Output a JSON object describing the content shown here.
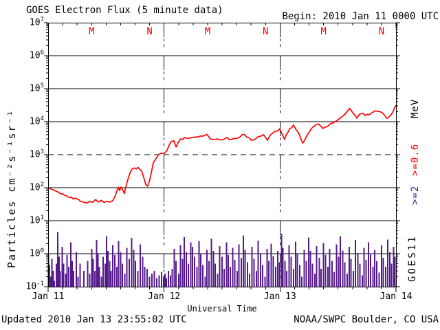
{
  "header": {
    "title": "GOES Electron Flux (5 minute data)",
    "begin": "Begin: 2010 Jan 11 0000 UTC"
  },
  "footer": {
    "updated": "Updated 2010 Jan 13 23:55:02 UTC",
    "credit": "NOAA/SWPC Boulder, CO USA"
  },
  "chart_data": {
    "type": "line+bar",
    "title": "GOES Electron Flux (5 minute data)",
    "xlabel": "Universal Time",
    "ylabel": "Particles cm⁻²s⁻¹sr⁻¹",
    "satellite": "GOES11",
    "x_ticks": [
      {
        "label": "Jan 11",
        "day": 0
      },
      {
        "label": "Jan 12",
        "day": 1
      },
      {
        "label": "Jan 13",
        "day": 2
      },
      {
        "label": "Jan 14",
        "day": 3
      }
    ],
    "y_ticks": [
      {
        "label": "10^7",
        "exp": 7
      },
      {
        "label": "10^6",
        "exp": 6
      },
      {
        "label": "10^5",
        "exp": 5
      },
      {
        "label": "10^4",
        "exp": 4
      },
      {
        "label": "10^3",
        "exp": 3
      },
      {
        "label": "10^2",
        "exp": 2
      },
      {
        "label": "10^1",
        "exp": 1
      },
      {
        "label": "10^0",
        "exp": 0
      },
      {
        "label": "10^-1",
        "exp": -1
      }
    ],
    "ylim_exp": [
      -1,
      7
    ],
    "x_range_hours": [
      0,
      72
    ],
    "grid": {
      "solid_exponents": [
        6,
        5,
        4,
        2,
        1,
        0
      ],
      "dashed_exponents": [
        3
      ],
      "day_dotted_lines_hours": [
        24,
        48
      ],
      "minor_xtick_hours": 3
    },
    "local_time_markers": {
      "color": "#FF0000",
      "items": [
        {
          "label": "M",
          "hour": 9
        },
        {
          "label": "N",
          "hour": 21
        },
        {
          "label": "M",
          "hour": 33
        },
        {
          "label": "N",
          "hour": 45
        },
        {
          "label": "M",
          "hour": 57
        },
        {
          "label": "N",
          "hour": 69
        }
      ]
    },
    "right_axis_labels": {
      "units": "MeV",
      "series1": ">=0.6",
      "series2": ">=2",
      "satellite": "GOES11"
    },
    "series": [
      {
        "name": "electron flux >=0.6 MeV",
        "color": "#FF0000",
        "render": "line",
        "points_t_hours_flux": [
          [
            0,
            95
          ],
          [
            0.7,
            88
          ],
          [
            1.5,
            80
          ],
          [
            2.2,
            72
          ],
          [
            3,
            65
          ],
          [
            3.7,
            58
          ],
          [
            4.5,
            52
          ],
          [
            5.2,
            47
          ],
          [
            6,
            44
          ],
          [
            6.7,
            40
          ],
          [
            7.4,
            38
          ],
          [
            8,
            36
          ],
          [
            8.6,
            40
          ],
          [
            9.2,
            37
          ],
          [
            9.8,
            42
          ],
          [
            10.4,
            36
          ],
          [
            11,
            39
          ],
          [
            11.6,
            35
          ],
          [
            12.2,
            38
          ],
          [
            12.8,
            36
          ],
          [
            13.4,
            42
          ],
          [
            13.8,
            55
          ],
          [
            14.2,
            75
          ],
          [
            14.5,
            100
          ],
          [
            14.8,
            80
          ],
          [
            15.1,
            110
          ],
          [
            15.4,
            85
          ],
          [
            15.8,
            65
          ],
          [
            16.2,
            120
          ],
          [
            16.6,
            185
          ],
          [
            17,
            280
          ],
          [
            17.4,
            360
          ],
          [
            17.8,
            420
          ],
          [
            18.2,
            390
          ],
          [
            18.6,
            430
          ],
          [
            19,
            370
          ],
          [
            19.4,
            330
          ],
          [
            19.8,
            210
          ],
          [
            20.2,
            130
          ],
          [
            20.6,
            115
          ],
          [
            21,
            160
          ],
          [
            21.4,
            330
          ],
          [
            21.8,
            560
          ],
          [
            22.2,
            750
          ],
          [
            22.8,
            1000
          ],
          [
            23.4,
            1100
          ],
          [
            24,
            1150
          ],
          [
            24.6,
            1400
          ],
          [
            25.4,
            2300
          ],
          [
            26,
            2600
          ],
          [
            26.5,
            1800
          ],
          [
            27.4,
            2900
          ],
          [
            28.6,
            3300
          ],
          [
            30,
            3400
          ],
          [
            31.5,
            3500
          ],
          [
            32.8,
            4100
          ],
          [
            33.6,
            3100
          ],
          [
            34.6,
            2900
          ],
          [
            36,
            3000
          ],
          [
            37,
            3200
          ],
          [
            38,
            2900
          ],
          [
            39.4,
            3400
          ],
          [
            40.6,
            4300
          ],
          [
            41.2,
            3500
          ],
          [
            42,
            2800
          ],
          [
            43,
            3000
          ],
          [
            44.6,
            4300
          ],
          [
            45.4,
            2700
          ],
          [
            46.2,
            4400
          ],
          [
            47,
            5200
          ],
          [
            47.9,
            5800
          ],
          [
            48.5,
            4200
          ],
          [
            48.9,
            3000
          ],
          [
            50,
            6000
          ],
          [
            50.8,
            7500
          ],
          [
            52,
            4200
          ],
          [
            52.7,
            2200
          ],
          [
            53.5,
            3600
          ],
          [
            54.5,
            6500
          ],
          [
            55.5,
            8300
          ],
          [
            56.3,
            7900
          ],
          [
            56.9,
            6100
          ],
          [
            58,
            7600
          ],
          [
            59,
            9000
          ],
          [
            60,
            11000
          ],
          [
            61,
            15000
          ],
          [
            62.4,
            24000
          ],
          [
            63.2,
            17500
          ],
          [
            63.9,
            13000
          ],
          [
            64.8,
            18500
          ],
          [
            65.6,
            15500
          ],
          [
            66.4,
            16500
          ],
          [
            67.2,
            20500
          ],
          [
            68.2,
            20000
          ],
          [
            69.2,
            19000
          ],
          [
            70.1,
            12500
          ],
          [
            71,
            17000
          ],
          [
            71.7,
            26000
          ],
          [
            72,
            32000
          ]
        ]
      },
      {
        "name": "electron flux >=2 MeV",
        "color": "#551A8B",
        "render": "bars",
        "points_t_hours_flux": [
          [
            0.1,
            1.0
          ],
          [
            0.3,
            0.45
          ],
          [
            0.5,
            0.2
          ],
          [
            0.8,
            0.7
          ],
          [
            1.1,
            0.3
          ],
          [
            1.3,
            0.15
          ],
          [
            1.7,
            0.5
          ],
          [
            2.0,
            4.5
          ],
          [
            2.3,
            0.8
          ],
          [
            2.5,
            0.3
          ],
          [
            2.9,
            1.6
          ],
          [
            3.2,
            0.5
          ],
          [
            3.6,
            0.25
          ],
          [
            3.9,
            0.9
          ],
          [
            4.3,
            0.4
          ],
          [
            4.7,
            2.2
          ],
          [
            5.0,
            0.6
          ],
          [
            5.3,
            0.3
          ],
          [
            5.8,
            1.1
          ],
          [
            6.2,
            0.2
          ],
          [
            6.6,
            0.5
          ],
          [
            7.4,
            0.3
          ],
          [
            8.2,
            0.6
          ],
          [
            8.6,
            0.25
          ],
          [
            9.0,
            1.4
          ],
          [
            9.3,
            0.7
          ],
          [
            9.7,
            0.3
          ],
          [
            10.0,
            2.6
          ],
          [
            10.3,
            1.0
          ],
          [
            10.6,
            0.4
          ],
          [
            11.0,
            0.2
          ],
          [
            11.4,
            0.8
          ],
          [
            11.8,
            0.5
          ],
          [
            12.1,
            3.4
          ],
          [
            12.4,
            1.2
          ],
          [
            12.7,
            0.6
          ],
          [
            13.0,
            0.3
          ],
          [
            13.4,
            1.8
          ],
          [
            13.8,
            0.9
          ],
          [
            14.2,
            0.4
          ],
          [
            14.6,
            2.4
          ],
          [
            15.0,
            1.1
          ],
          [
            15.4,
            0.5
          ],
          [
            15.9,
            0.25
          ],
          [
            16.3,
            1.5
          ],
          [
            16.8,
            0.7
          ],
          [
            17.3,
            3.0
          ],
          [
            17.7,
            1.3
          ],
          [
            18.1,
            0.6
          ],
          [
            18.6,
            0.3
          ],
          [
            19.1,
            1.9
          ],
          [
            19.6,
            0.8
          ],
          [
            20.0,
            0.4
          ],
          [
            20.5,
            0.35
          ],
          [
            21.0,
            0.2
          ],
          [
            21.5,
            0.25
          ],
          [
            22.0,
            0.3
          ],
          [
            22.5,
            0.18
          ],
          [
            23.0,
            0.22
          ],
          [
            23.5,
            0.28
          ],
          [
            23.9,
            0.2
          ],
          [
            24.2,
            0.25
          ],
          [
            24.5,
            0.18
          ],
          [
            24.9,
            0.3
          ],
          [
            25.3,
            0.22
          ],
          [
            25.7,
            0.35
          ],
          [
            26.1,
            1.4
          ],
          [
            26.5,
            0.6
          ],
          [
            27.0,
            0.25
          ],
          [
            27.4,
            1.8
          ],
          [
            27.8,
            0.7
          ],
          [
            28.2,
            3.2
          ],
          [
            28.6,
            1.1
          ],
          [
            29.0,
            0.5
          ],
          [
            29.5,
            2.2
          ],
          [
            29.9,
            1.6
          ],
          [
            30.3,
            0.8
          ],
          [
            30.8,
            0.4
          ],
          [
            31.2,
            2.4
          ],
          [
            31.6,
            1.0
          ],
          [
            32.0,
            0.45
          ],
          [
            32.5,
            0.2
          ],
          [
            32.9,
            1.3
          ],
          [
            33.3,
            0.6
          ],
          [
            33.8,
            2.9
          ],
          [
            34.2,
            1.2
          ],
          [
            34.6,
            0.5
          ],
          [
            35.1,
            0.25
          ],
          [
            35.5,
            1.7
          ],
          [
            36.0,
            0.8
          ],
          [
            36.4,
            0.35
          ],
          [
            36.9,
            2.2
          ],
          [
            37.3,
            0.9
          ],
          [
            37.7,
            0.4
          ],
          [
            38.2,
            1.5
          ],
          [
            38.6,
            0.65
          ],
          [
            39.1,
            0.3
          ],
          [
            39.5,
            1.9
          ],
          [
            40.0,
            0.75
          ],
          [
            40.4,
            3.6
          ],
          [
            40.8,
            1.3
          ],
          [
            41.3,
            0.55
          ],
          [
            41.7,
            0.25
          ],
          [
            42.2,
            1.6
          ],
          [
            42.6,
            0.7
          ],
          [
            43.1,
            0.3
          ],
          [
            43.5,
            2.5
          ],
          [
            44.0,
            1.0
          ],
          [
            44.4,
            0.45
          ],
          [
            44.9,
            0.2
          ],
          [
            45.3,
            1.4
          ],
          [
            45.7,
            0.6
          ],
          [
            46.2,
            2.0
          ],
          [
            46.6,
            0.85
          ],
          [
            47.1,
            0.4
          ],
          [
            47.5,
            1.2
          ],
          [
            47.9,
            0.55
          ],
          [
            48.3,
            4.0
          ],
          [
            48.6,
            1.5
          ],
          [
            49.0,
            0.6
          ],
          [
            49.4,
            0.3
          ],
          [
            49.9,
            1.8
          ],
          [
            50.3,
            0.8
          ],
          [
            50.8,
            0.35
          ],
          [
            51.2,
            2.3
          ],
          [
            51.6,
            1.0
          ],
          [
            52.1,
            0.45
          ],
          [
            52.5,
            0.2
          ],
          [
            53.0,
            1.3
          ],
          [
            53.4,
            0.6
          ],
          [
            53.9,
            3.1
          ],
          [
            54.3,
            1.2
          ],
          [
            54.7,
            0.5
          ],
          [
            55.2,
            0.25
          ],
          [
            55.6,
            1.7
          ],
          [
            56.1,
            0.75
          ],
          [
            56.5,
            0.35
          ],
          [
            57.0,
            2.1
          ],
          [
            57.4,
            0.9
          ],
          [
            57.9,
            0.4
          ],
          [
            58.3,
            1.4
          ],
          [
            58.8,
            0.6
          ],
          [
            59.2,
            0.28
          ],
          [
            59.7,
            1.9
          ],
          [
            60.1,
            0.8
          ],
          [
            60.5,
            3.4
          ],
          [
            61.0,
            1.25
          ],
          [
            61.4,
            0.55
          ],
          [
            61.9,
            0.25
          ],
          [
            62.3,
            1.6
          ],
          [
            62.7,
            0.7
          ],
          [
            63.2,
            0.3
          ],
          [
            63.6,
            2.6
          ],
          [
            64.1,
            1.05
          ],
          [
            64.5,
            0.5
          ],
          [
            65.0,
            0.22
          ],
          [
            65.4,
            1.5
          ],
          [
            65.8,
            0.65
          ],
          [
            66.3,
            2.2
          ],
          [
            66.7,
            0.95
          ],
          [
            67.2,
            0.4
          ],
          [
            67.6,
            1.3
          ],
          [
            68.0,
            0.6
          ],
          [
            68.5,
            0.27
          ],
          [
            69.0,
            1.8
          ],
          [
            69.4,
            0.75
          ],
          [
            69.9,
            0.4
          ],
          [
            70.3,
            2.7
          ],
          [
            70.7,
            1.1
          ],
          [
            71.1,
            0.5
          ],
          [
            71.5,
            1.6
          ],
          [
            71.8,
            0.8
          ]
        ]
      }
    ]
  }
}
